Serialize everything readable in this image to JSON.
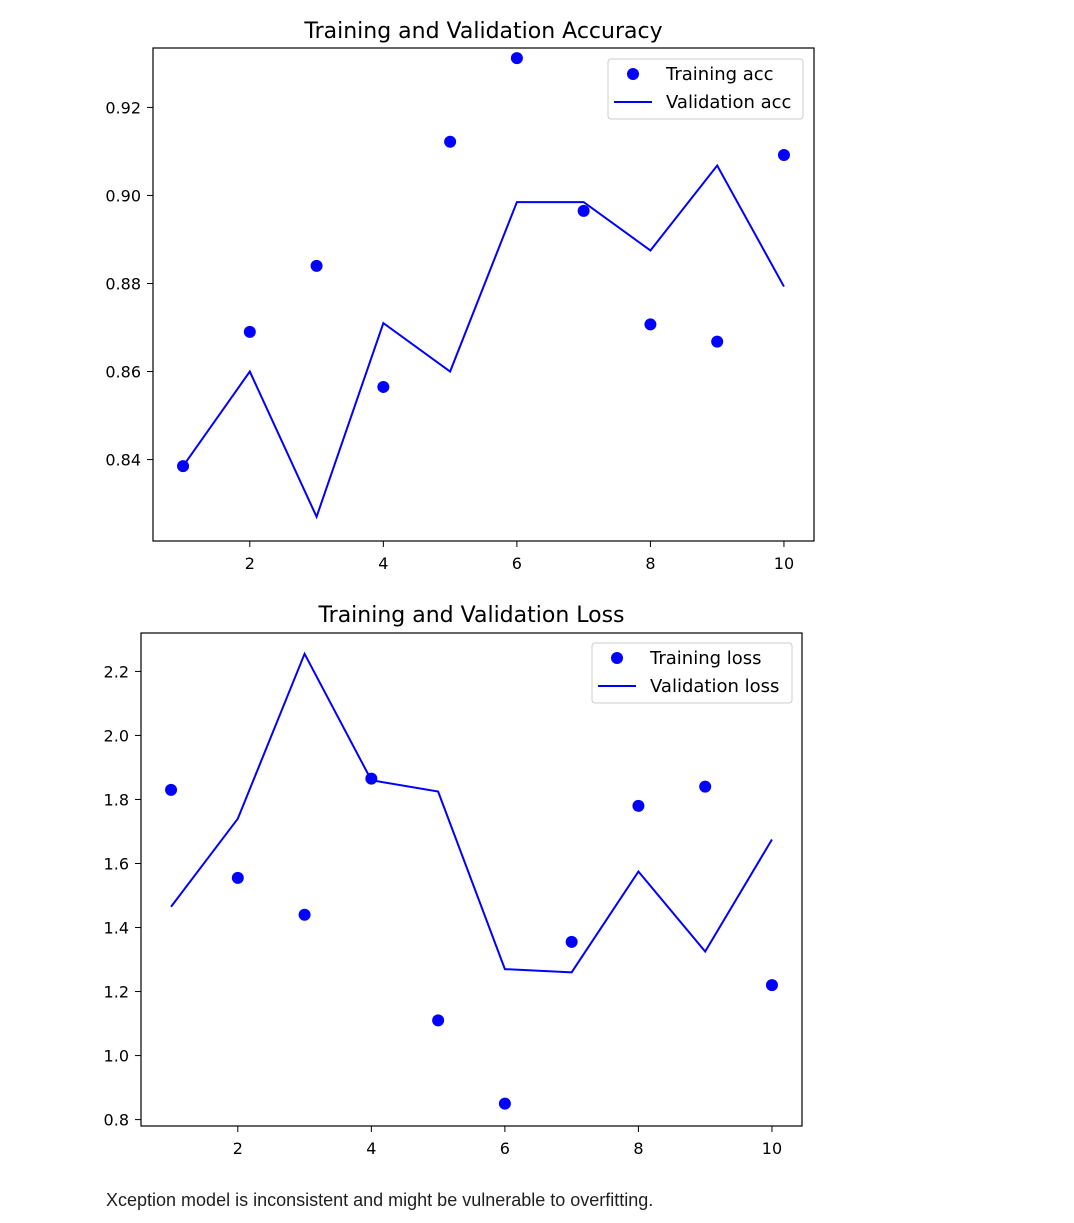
{
  "chart_data": [
    {
      "type": "line",
      "title": "Training and Validation Accuracy",
      "xlabel": "",
      "ylabel": "",
      "xlim": [
        0.55,
        10.45
      ],
      "ylim": [
        0.8215,
        0.9335
      ],
      "x_ticks": [
        2,
        4,
        6,
        8,
        10
      ],
      "y_ticks": [
        0.84,
        0.86,
        0.88,
        0.9,
        0.92
      ],
      "x_tick_labels": [
        "2",
        "4",
        "6",
        "8",
        "10"
      ],
      "y_tick_labels": [
        "0.84",
        "0.86",
        "0.88",
        "0.90",
        "0.92"
      ],
      "grid": false,
      "legend_position": "top-right",
      "series": [
        {
          "name": "Training acc",
          "style": "scatter",
          "color": "#0000ff",
          "x": [
            1,
            2,
            3,
            4,
            5,
            6,
            7,
            8,
            9,
            10
          ],
          "values": [
            0.8385,
            0.869,
            0.884,
            0.8565,
            0.9122,
            0.9312,
            0.8965,
            0.8707,
            0.8668,
            0.9092
          ]
        },
        {
          "name": "Validation acc",
          "style": "line",
          "color": "#0000ff",
          "x": [
            1,
            2,
            3,
            4,
            5,
            6,
            7,
            8,
            9,
            10
          ],
          "values": [
            0.8385,
            0.86,
            0.827,
            0.871,
            0.86,
            0.8985,
            0.8985,
            0.8875,
            0.9068,
            0.8793
          ]
        }
      ]
    },
    {
      "type": "line",
      "title": "Training and Validation Loss",
      "xlabel": "",
      "ylabel": "",
      "xlim": [
        0.55,
        10.45
      ],
      "ylim": [
        0.78,
        2.32
      ],
      "x_ticks": [
        2,
        4,
        6,
        8,
        10
      ],
      "y_ticks": [
        0.8,
        1.0,
        1.2,
        1.4,
        1.6,
        1.8,
        2.0,
        2.2
      ],
      "x_tick_labels": [
        "2",
        "4",
        "6",
        "8",
        "10"
      ],
      "y_tick_labels": [
        "0.8",
        "1.0",
        "1.2",
        "1.4",
        "1.6",
        "1.8",
        "2.0",
        "2.2"
      ],
      "grid": false,
      "legend_position": "top-right",
      "series": [
        {
          "name": "Training loss",
          "style": "scatter",
          "color": "#0000ff",
          "x": [
            1,
            2,
            3,
            4,
            5,
            6,
            7,
            8,
            9,
            10
          ],
          "values": [
            1.83,
            1.555,
            1.44,
            1.865,
            1.11,
            0.85,
            1.355,
            1.78,
            1.84,
            1.22
          ]
        },
        {
          "name": "Validation loss",
          "style": "line",
          "color": "#0000ff",
          "x": [
            1,
            2,
            3,
            4,
            5,
            6,
            7,
            8,
            9,
            10
          ],
          "values": [
            1.465,
            1.74,
            2.255,
            1.86,
            1.825,
            1.27,
            1.26,
            1.575,
            1.325,
            1.675
          ]
        }
      ]
    }
  ],
  "caption": "Xception model is inconsistent and might be vulnerable to overfitting."
}
